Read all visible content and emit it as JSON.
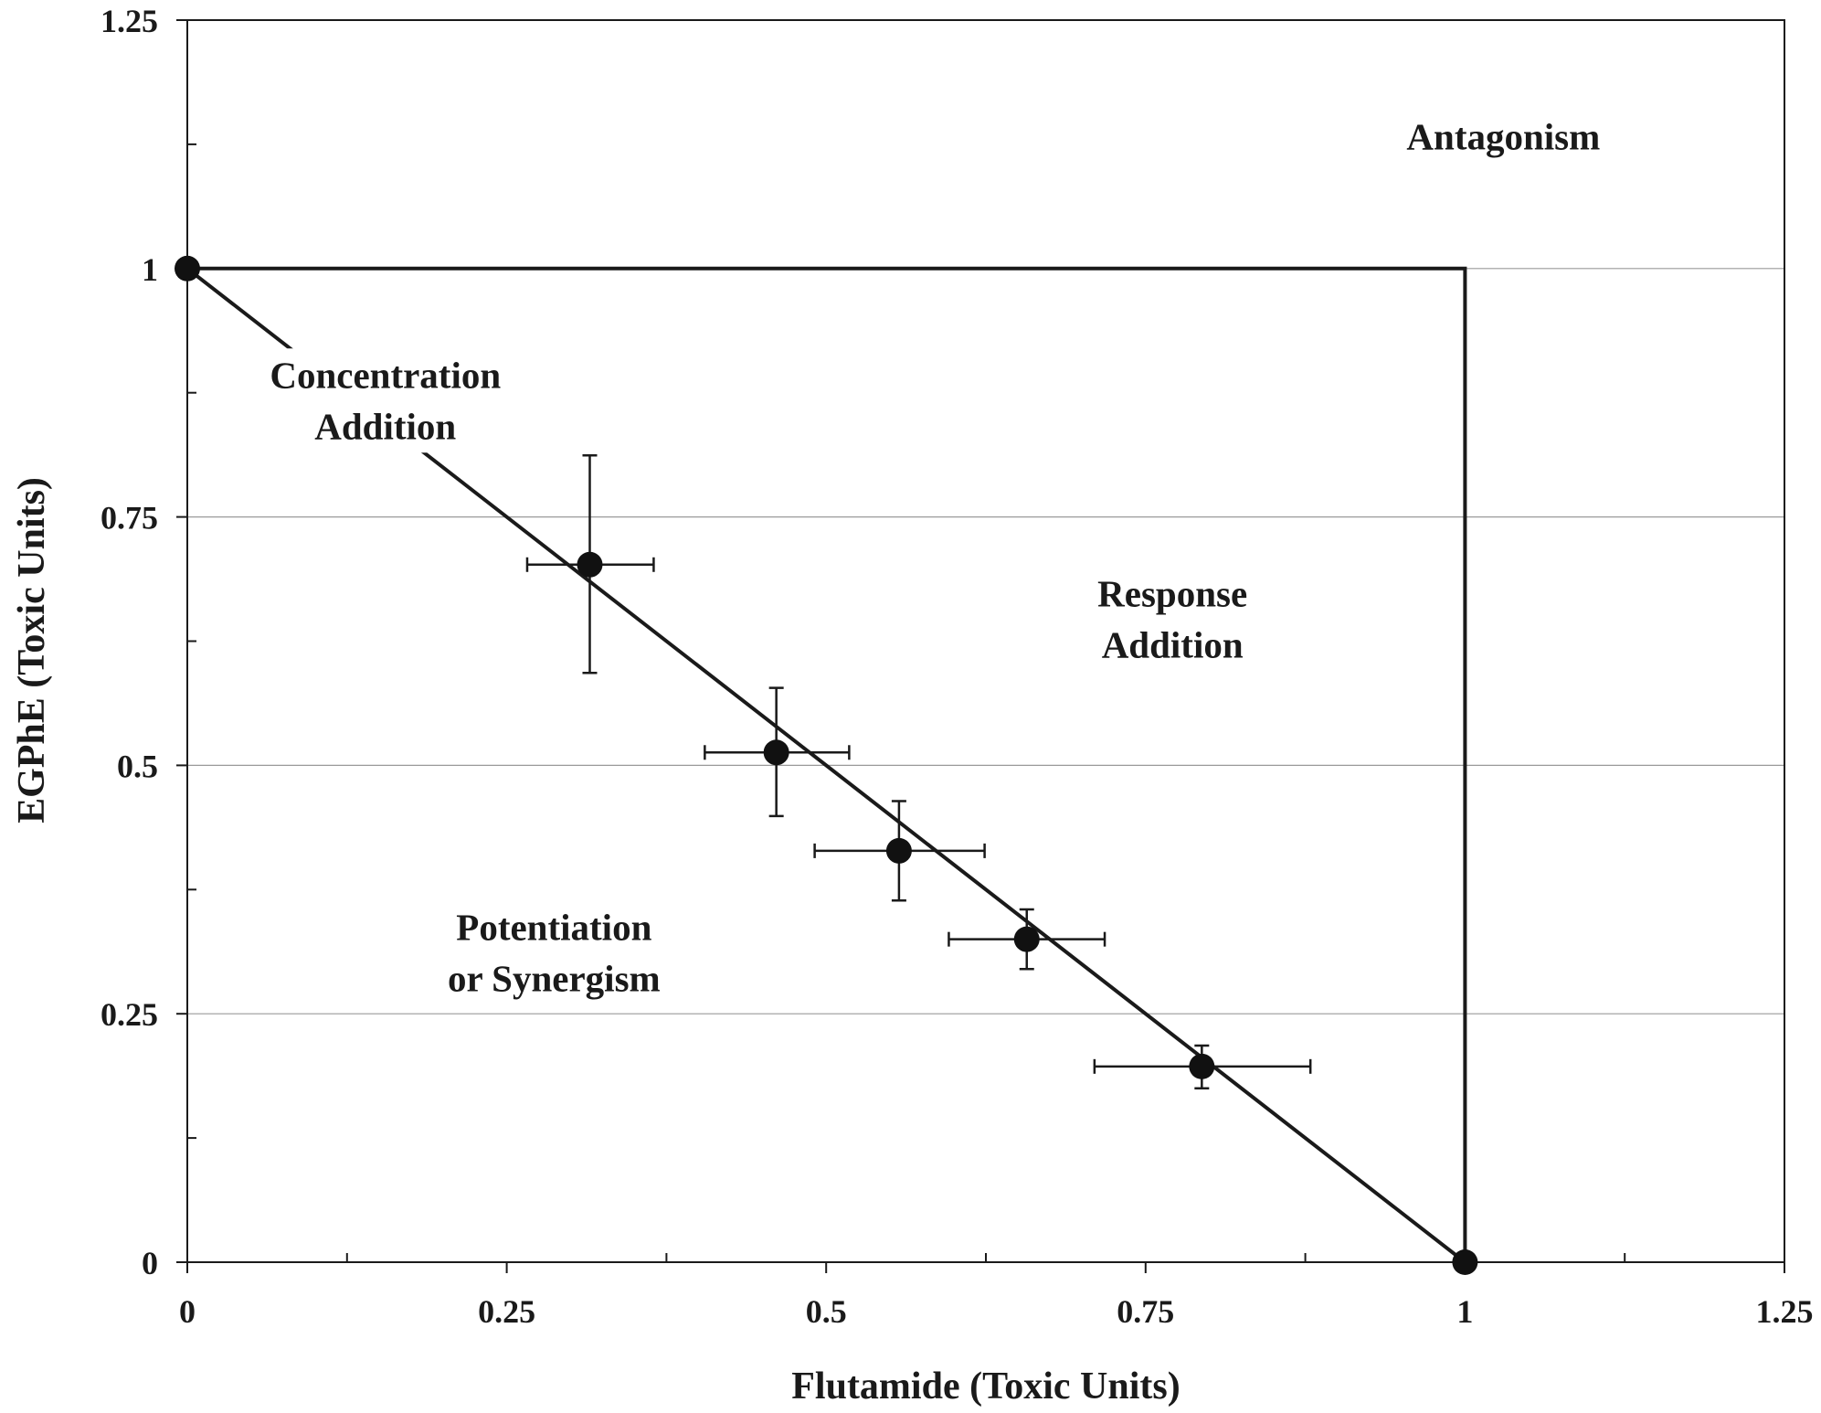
{
  "chart_data": {
    "type": "scatter",
    "title": "",
    "xlabel": "Flutamide (Toxic Units)",
    "ylabel": "EGPhE  (Toxic Units)",
    "xlim": [
      0,
      1.25
    ],
    "ylim": [
      0,
      1.25
    ],
    "x_ticks": [
      0,
      0.25,
      0.5,
      0.75,
      1,
      1.25
    ],
    "y_ticks": [
      0,
      0.25,
      0.5,
      0.75,
      1,
      1.25
    ],
    "x_tick_labels": [
      "0",
      "0.25",
      "0.5",
      "0.75",
      "1",
      "1.25"
    ],
    "y_tick_labels": [
      "0",
      "0.25",
      "0.5",
      "0.75",
      "1",
      "1.25"
    ],
    "grid": "horizontal",
    "series": [
      {
        "points": [
          {
            "x": 0,
            "y": 1
          },
          {
            "x": 0.315,
            "y": 0.702,
            "xerr": [
              0.266,
              0.365
            ],
            "yerr": [
              0.593,
              0.812
            ]
          },
          {
            "x": 0.461,
            "y": 0.513,
            "xerr": [
              0.405,
              0.518
            ],
            "yerr": [
              0.449,
              0.578
            ]
          },
          {
            "x": 0.557,
            "y": 0.414,
            "xerr": [
              0.491,
              0.624
            ],
            "yerr": [
              0.364,
              0.464
            ]
          },
          {
            "x": 0.657,
            "y": 0.325,
            "xerr": [
              0.596,
              0.718
            ],
            "yerr": [
              0.295,
              0.355
            ]
          },
          {
            "x": 0.794,
            "y": 0.197,
            "xerr": [
              0.71,
              0.879
            ],
            "yerr": [
              0.175,
              0.218
            ]
          },
          {
            "x": 1,
            "y": 0
          }
        ]
      }
    ],
    "reference_lines": [
      {
        "name": "concentration-addition-line",
        "points": [
          [
            0,
            1
          ],
          [
            1,
            0
          ]
        ]
      },
      {
        "name": "response-addition-boundary",
        "points": [
          [
            0,
            1
          ],
          [
            1,
            1
          ],
          [
            1,
            0
          ]
        ]
      }
    ],
    "annotations": [
      {
        "name": "antagonism-label",
        "lines": [
          "Antagonism"
        ],
        "x": 1.03,
        "y": 1.12
      },
      {
        "name": "concentration-addition-label",
        "lines": [
          "Concentration",
          "Addition"
        ],
        "x": 0.155,
        "y": 0.88
      },
      {
        "name": "response-addition-label",
        "lines": [
          "Response",
          "Addition"
        ],
        "x": 0.771,
        "y": 0.66
      },
      {
        "name": "potentiation-label",
        "lines": [
          "Potentiation",
          "or Synergism"
        ],
        "x": 0.287,
        "y": 0.324
      }
    ]
  }
}
